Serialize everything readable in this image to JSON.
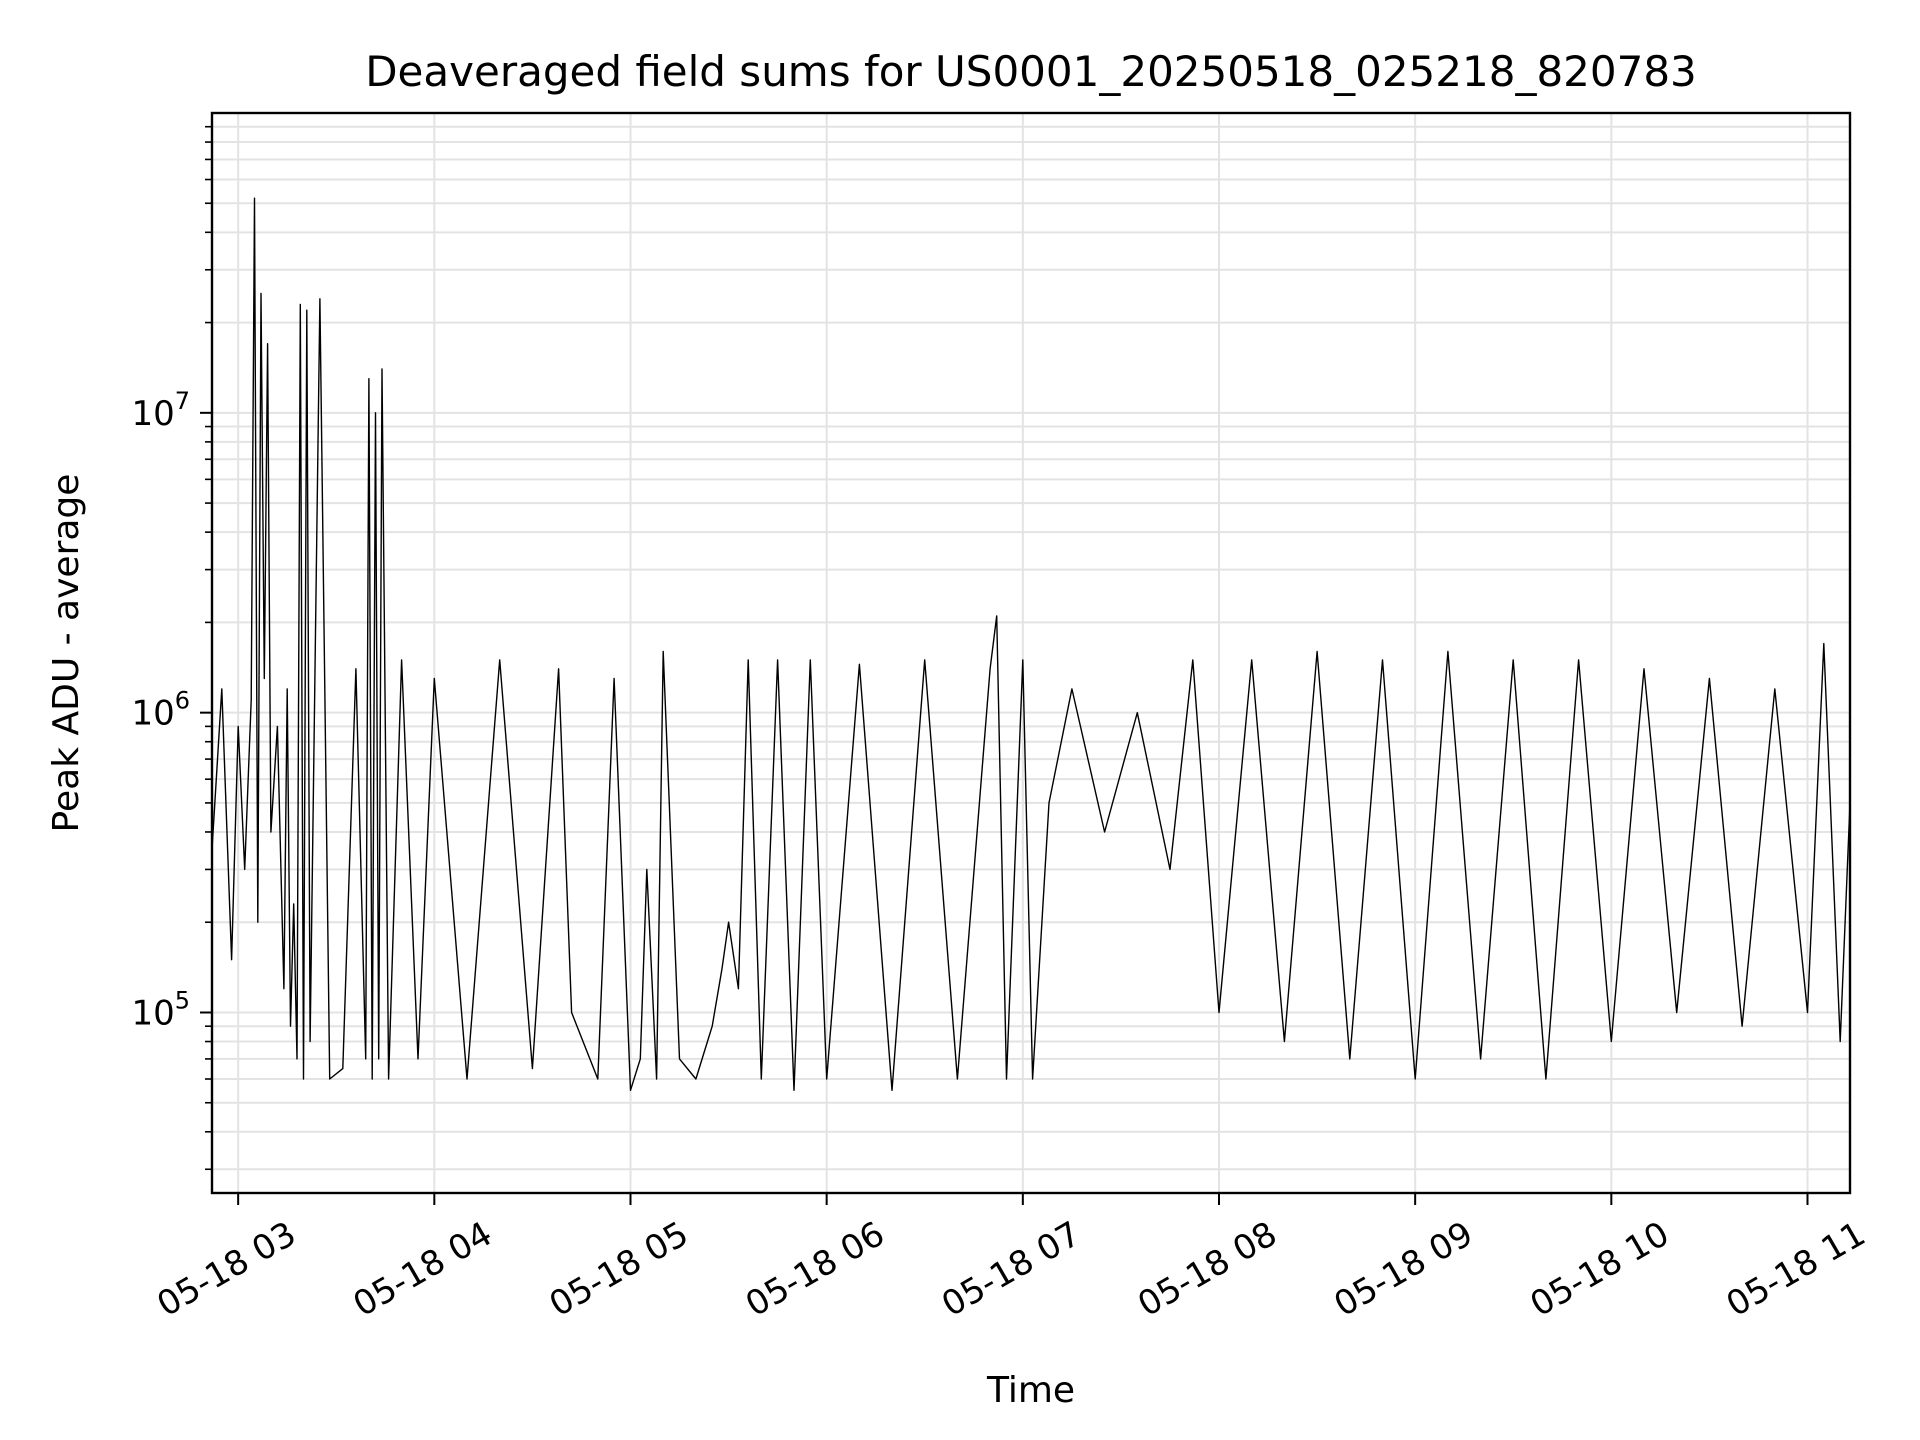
{
  "chart_data": {
    "type": "line",
    "title": "Deaveraged field sums for US0001_20250518_025218_820783",
    "xlabel": "Time",
    "ylabel": "Peak ADU - average",
    "yscale": "log",
    "ylim": [
      25000,
      100000000
    ],
    "xlim": [
      "2025-05-18 02:52",
      "2025-05-18 11:13"
    ],
    "grid": true,
    "color": "#000000",
    "x_ticks": [
      {
        "t": "2025-05-18 03:00",
        "label": "05-18 03"
      },
      {
        "t": "2025-05-18 04:00",
        "label": "05-18 04"
      },
      {
        "t": "2025-05-18 05:00",
        "label": "05-18 05"
      },
      {
        "t": "2025-05-18 06:00",
        "label": "05-18 06"
      },
      {
        "t": "2025-05-18 07:00",
        "label": "05-18 07"
      },
      {
        "t": "2025-05-18 08:00",
        "label": "05-18 08"
      },
      {
        "t": "2025-05-18 09:00",
        "label": "05-18 09"
      },
      {
        "t": "2025-05-18 10:00",
        "label": "05-18 10"
      },
      {
        "t": "2025-05-18 11:00",
        "label": "05-18 11"
      }
    ],
    "y_ticks": [
      {
        "v": 100000,
        "base": "10",
        "exp": "5"
      },
      {
        "v": 1000000,
        "base": "10",
        "exp": "6"
      },
      {
        "v": 10000000,
        "base": "10",
        "exp": "7"
      }
    ],
    "series": [
      {
        "x": [
          "2025-05-18 02:52",
          "2025-05-18 02:55",
          "2025-05-18 02:58",
          "2025-05-18 03:00",
          "2025-05-18 03:02",
          "2025-05-18 03:04",
          "2025-05-18 03:05",
          "2025-05-18 03:06",
          "2025-05-18 03:07",
          "2025-05-18 03:08",
          "2025-05-18 03:09",
          "2025-05-18 03:10",
          "2025-05-18 03:12",
          "2025-05-18 03:14",
          "2025-05-18 03:15",
          "2025-05-18 03:16",
          "2025-05-18 03:17",
          "2025-05-18 03:18",
          "2025-05-18 03:19",
          "2025-05-18 03:20",
          "2025-05-18 03:21",
          "2025-05-18 03:22",
          "2025-05-18 03:25",
          "2025-05-18 03:28",
          "2025-05-18 03:32",
          "2025-05-18 03:36",
          "2025-05-18 03:39",
          "2025-05-18 03:40",
          "2025-05-18 03:41",
          "2025-05-18 03:42",
          "2025-05-18 03:43",
          "2025-05-18 03:44",
          "2025-05-18 03:46",
          "2025-05-18 03:50",
          "2025-05-18 03:55",
          "2025-05-18 04:00",
          "2025-05-18 04:10",
          "2025-05-18 04:20",
          "2025-05-18 04:30",
          "2025-05-18 04:38",
          "2025-05-18 04:42",
          "2025-05-18 04:50",
          "2025-05-18 04:55",
          "2025-05-18 05:00",
          "2025-05-18 05:03",
          "2025-05-18 05:05",
          "2025-05-18 05:08",
          "2025-05-18 05:10",
          "2025-05-18 05:15",
          "2025-05-18 05:20",
          "2025-05-18 05:25",
          "2025-05-18 05:28",
          "2025-05-18 05:30",
          "2025-05-18 05:33",
          "2025-05-18 05:36",
          "2025-05-18 05:40",
          "2025-05-18 05:45",
          "2025-05-18 05:50",
          "2025-05-18 05:55",
          "2025-05-18 06:00",
          "2025-05-18 06:10",
          "2025-05-18 06:20",
          "2025-05-18 06:30",
          "2025-05-18 06:40",
          "2025-05-18 06:50",
          "2025-05-18 06:52",
          "2025-05-18 06:55",
          "2025-05-18 07:00",
          "2025-05-18 07:03",
          "2025-05-18 07:08",
          "2025-05-18 07:15",
          "2025-05-18 07:25",
          "2025-05-18 07:35",
          "2025-05-18 07:45",
          "2025-05-18 07:48",
          "2025-05-18 07:52",
          "2025-05-18 08:00",
          "2025-05-18 08:10",
          "2025-05-18 08:20",
          "2025-05-18 08:30",
          "2025-05-18 08:40",
          "2025-05-18 08:50",
          "2025-05-18 09:00",
          "2025-05-18 09:10",
          "2025-05-18 09:20",
          "2025-05-18 09:30",
          "2025-05-18 09:40",
          "2025-05-18 09:50",
          "2025-05-18 10:00",
          "2025-05-18 10:10",
          "2025-05-18 10:20",
          "2025-05-18 10:30",
          "2025-05-18 10:40",
          "2025-05-18 10:50",
          "2025-05-18 11:00",
          "2025-05-18 11:05",
          "2025-05-18 11:10",
          "2025-05-18 11:13"
        ],
        "y": [
          350000,
          1200000,
          150000,
          900000,
          300000,
          1100000,
          52000000,
          200000,
          25000000,
          1300000,
          17000000,
          400000,
          900000,
          120000,
          1200000,
          90000,
          230000,
          70000,
          23000000,
          60000,
          22000000,
          80000,
          24000000,
          60000,
          65000,
          1400000,
          70000,
          13000000,
          60000,
          10000000,
          70000,
          14000000,
          60000,
          1500000,
          70000,
          1300000,
          60000,
          1500000,
          65000,
          1400000,
          100000,
          60000,
          1300000,
          55000,
          70000,
          300000,
          60000,
          1600000,
          70000,
          60000,
          90000,
          140000,
          200000,
          120000,
          1500000,
          60000,
          1500000,
          55000,
          1500000,
          60000,
          1450000,
          55000,
          1500000,
          60000,
          1400000,
          2100000,
          60000,
          1500000,
          60000,
          500000,
          1200000,
          400000,
          1000000,
          300000,
          600000,
          1500000,
          100000,
          1500000,
          80000,
          1600000,
          70000,
          1500000,
          60000,
          1600000,
          70000,
          1500000,
          60000,
          1500000,
          80000,
          1400000,
          100000,
          1300000,
          90000,
          1200000,
          100000,
          1700000,
          80000,
          500000
        ]
      }
    ]
  }
}
